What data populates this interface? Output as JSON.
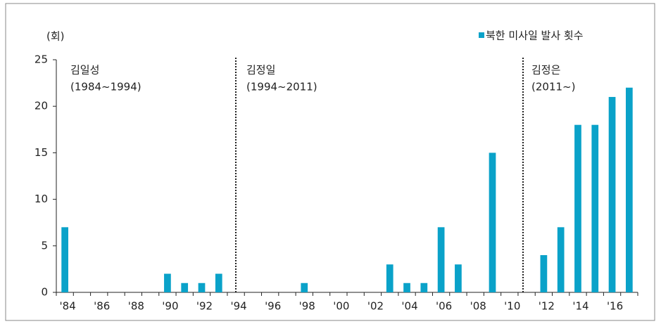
{
  "chart_data": {
    "type": "bar",
    "unit_label": "(회)",
    "categories": [
      "'84",
      null,
      "'86",
      null,
      "'88",
      null,
      "'90",
      null,
      "'92",
      null,
      "'94",
      null,
      "'96",
      null,
      "'98",
      null,
      "'00",
      null,
      "'02",
      null,
      "'04",
      null,
      "'06",
      null,
      "'08",
      null,
      "'10",
      null,
      "'12",
      null,
      "'14",
      null,
      "'16",
      null
    ],
    "series": [
      {
        "name": "북한 미사일 발사 횟수",
        "color": "#0aa2c9",
        "values": [
          7,
          0,
          0,
          0,
          0,
          0,
          2,
          1,
          1,
          2,
          0,
          0,
          0,
          0,
          1,
          0,
          0,
          0,
          0,
          3,
          1,
          1,
          7,
          3,
          0,
          15,
          0,
          0,
          4,
          7,
          18,
          18,
          21,
          22
        ]
      }
    ],
    "ylim": [
      0,
      25
    ],
    "yticks": [
      0,
      5,
      10,
      15,
      20,
      25
    ],
    "legend": "top-right",
    "annotations": [
      {
        "lines": [
          "김일성",
          "(1984~1994)"
        ]
      },
      {
        "lines": [
          "김정일",
          "(1994~2011)"
        ]
      },
      {
        "lines": [
          "김정은",
          "(2011~)"
        ]
      }
    ]
  }
}
